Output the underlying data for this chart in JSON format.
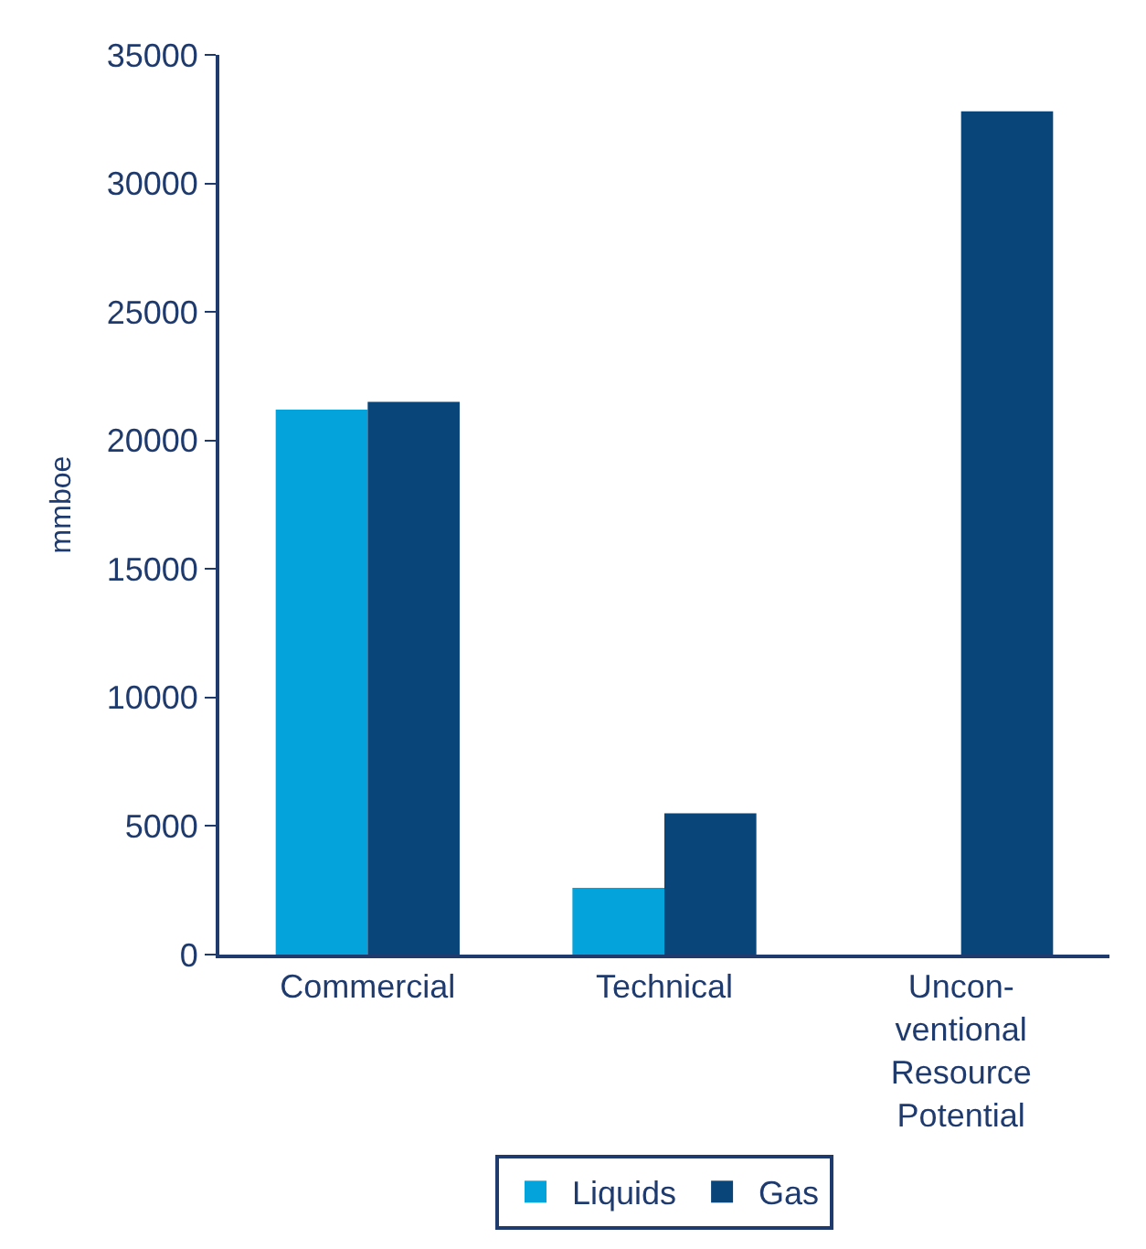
{
  "chart_data": {
    "type": "bar",
    "ylabel": "mmboe",
    "categories": [
      "Commercial",
      "Technical",
      "Uncon-\nventional\nResource\nPotential"
    ],
    "series": [
      {
        "name": "Liquids",
        "color": "#05a3db",
        "values": [
          21200,
          2600,
          null
        ]
      },
      {
        "name": "Gas",
        "color": "#0a457a",
        "values": [
          21500,
          5500,
          32800
        ]
      }
    ],
    "ylim": [
      0,
      35000
    ],
    "yticks": [
      0,
      5000,
      10000,
      15000,
      20000,
      25000,
      30000,
      35000
    ],
    "legend": "bottom"
  }
}
